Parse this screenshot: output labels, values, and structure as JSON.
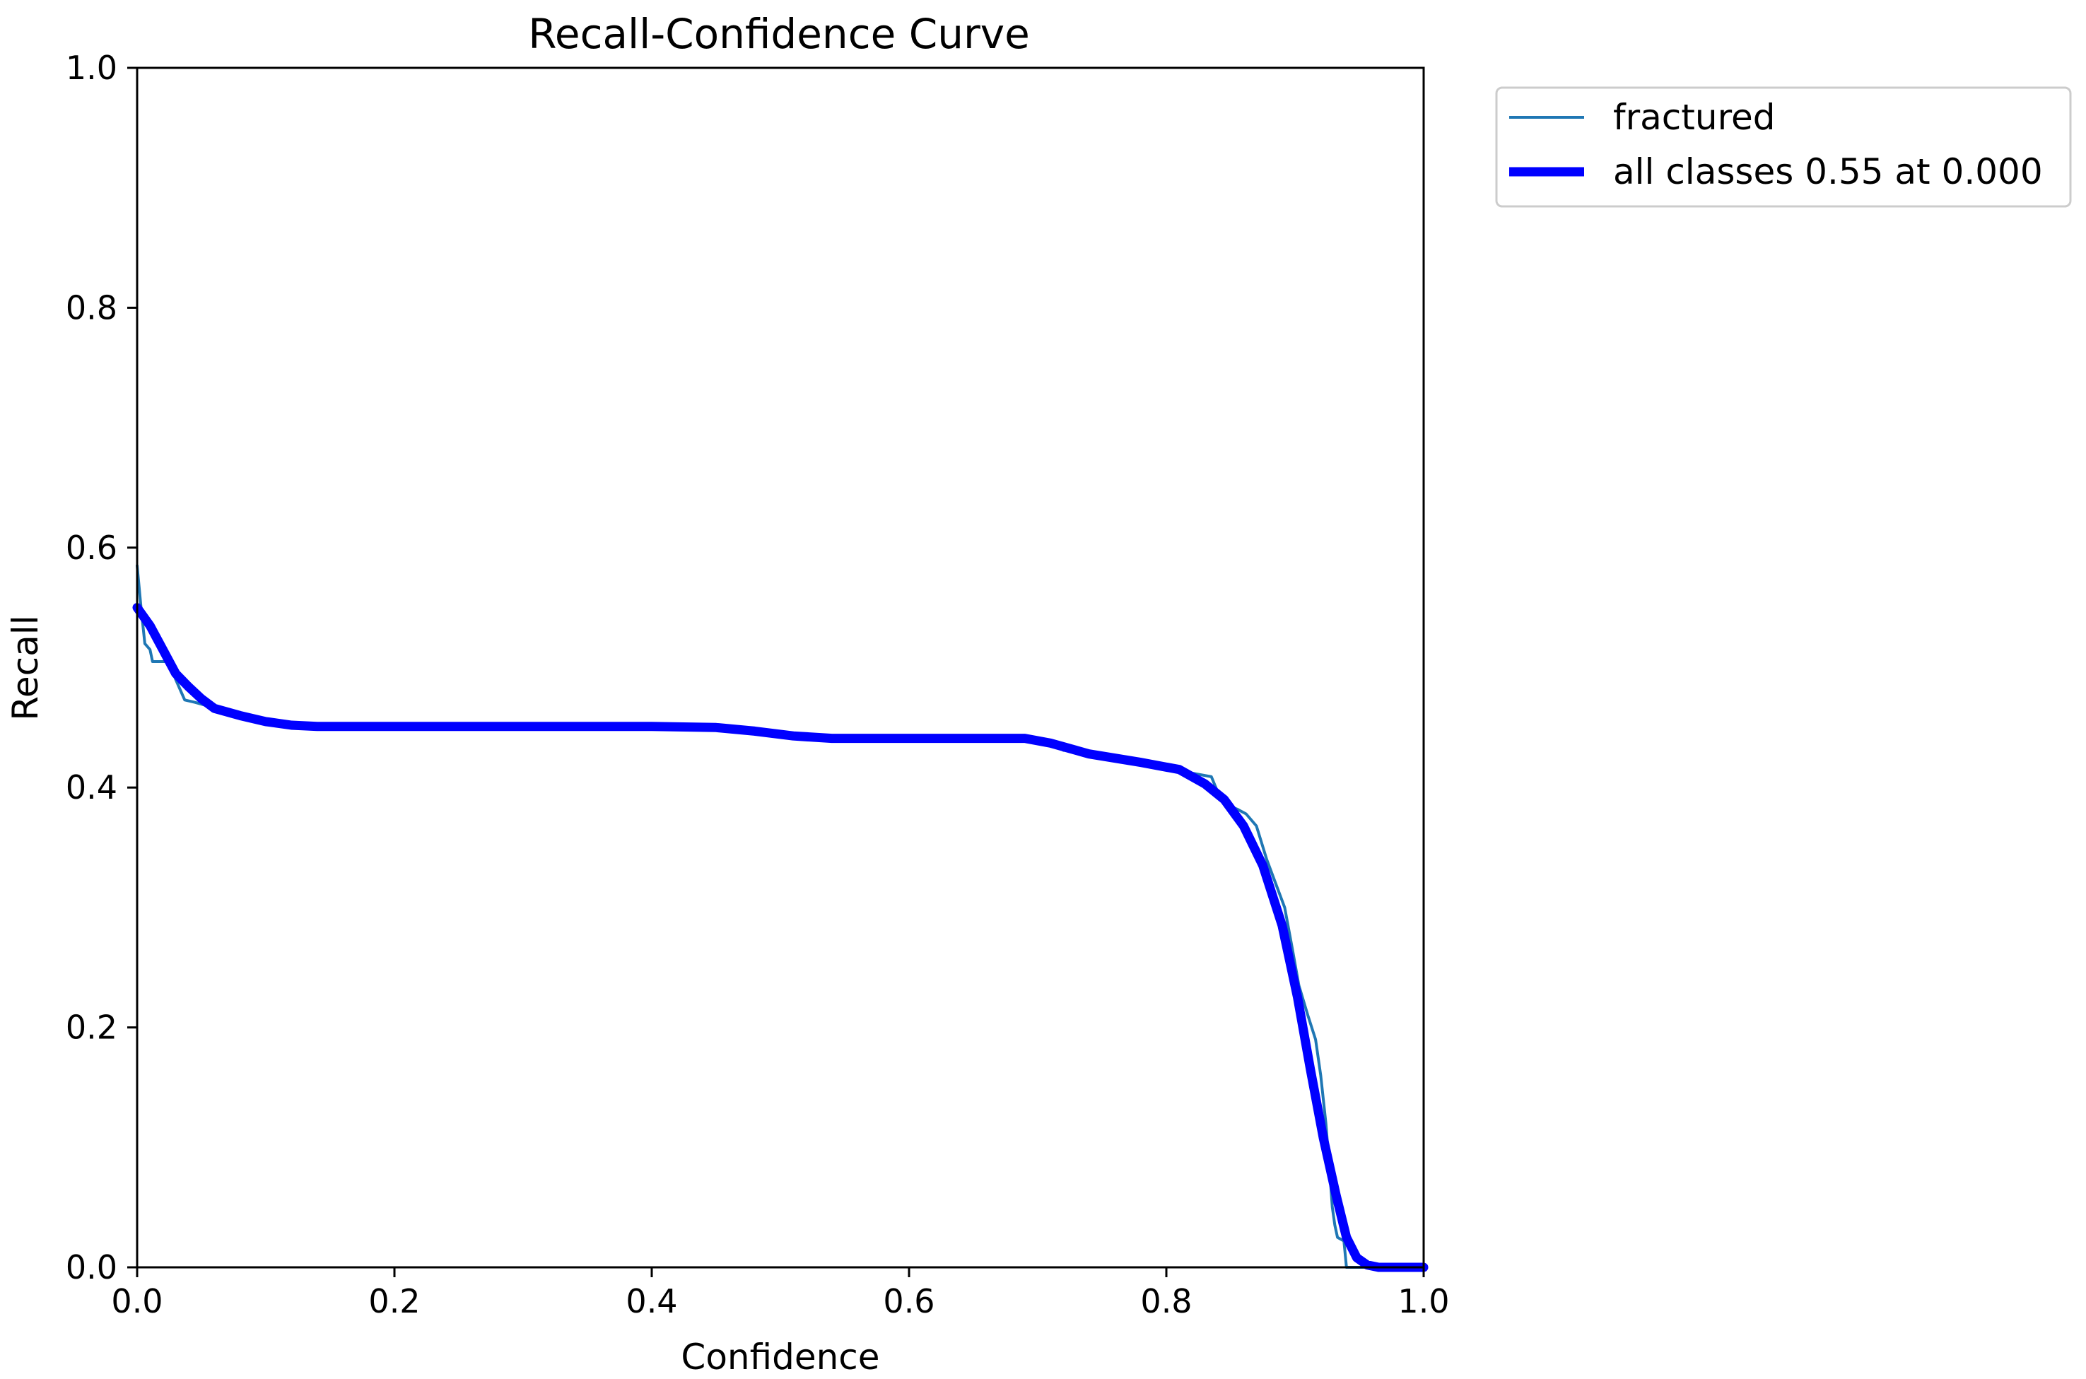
{
  "chart_data": {
    "type": "line",
    "title": "Recall-Confidence Curve",
    "xlabel": "Confidence",
    "ylabel": "Recall",
    "xlim": [
      0.0,
      1.0
    ],
    "ylim": [
      0.0,
      1.0
    ],
    "xticks": [
      "0.0",
      "0.2",
      "0.4",
      "0.6",
      "0.8",
      "1.0"
    ],
    "yticks": [
      "0.0",
      "0.2",
      "0.4",
      "0.6",
      "0.8",
      "1.0"
    ],
    "grid": false,
    "legend_position": "outside-top-right",
    "series": [
      {
        "name": "fractured",
        "color": "#1f77b4",
        "points": [
          [
            0.0,
            0.585
          ],
          [
            0.003,
            0.55
          ],
          [
            0.006,
            0.52
          ],
          [
            0.01,
            0.515
          ],
          [
            0.012,
            0.505
          ],
          [
            0.02,
            0.505
          ],
          [
            0.025,
            0.505
          ],
          [
            0.03,
            0.49
          ],
          [
            0.037,
            0.473
          ],
          [
            0.045,
            0.471
          ],
          [
            0.055,
            0.468
          ],
          [
            0.065,
            0.464
          ],
          [
            0.08,
            0.459
          ],
          [
            0.1,
            0.455
          ],
          [
            0.13,
            0.451
          ],
          [
            0.2,
            0.451
          ],
          [
            0.3,
            0.451
          ],
          [
            0.4,
            0.451
          ],
          [
            0.45,
            0.451
          ],
          [
            0.48,
            0.448
          ],
          [
            0.52,
            0.442
          ],
          [
            0.55,
            0.44
          ],
          [
            0.6,
            0.44
          ],
          [
            0.65,
            0.44
          ],
          [
            0.69,
            0.44
          ],
          [
            0.705,
            0.437
          ],
          [
            0.712,
            0.437
          ],
          [
            0.72,
            0.431
          ],
          [
            0.73,
            0.431
          ],
          [
            0.74,
            0.428
          ],
          [
            0.76,
            0.425
          ],
          [
            0.8,
            0.418
          ],
          [
            0.815,
            0.414
          ],
          [
            0.82,
            0.412
          ],
          [
            0.835,
            0.409
          ],
          [
            0.84,
            0.396
          ],
          [
            0.845,
            0.386
          ],
          [
            0.855,
            0.382
          ],
          [
            0.862,
            0.378
          ],
          [
            0.87,
            0.368
          ],
          [
            0.878,
            0.34
          ],
          [
            0.885,
            0.32
          ],
          [
            0.892,
            0.3
          ],
          [
            0.898,
            0.265
          ],
          [
            0.903,
            0.235
          ],
          [
            0.91,
            0.21
          ],
          [
            0.916,
            0.19
          ],
          [
            0.92,
            0.16
          ],
          [
            0.924,
            0.12
          ],
          [
            0.927,
            0.08
          ],
          [
            0.929,
            0.05
          ],
          [
            0.931,
            0.035
          ],
          [
            0.933,
            0.025
          ],
          [
            0.938,
            0.022
          ],
          [
            0.94,
            0.0
          ],
          [
            0.97,
            0.0
          ],
          [
            1.0,
            0.0
          ]
        ]
      },
      {
        "name": "all classes 0.55 at 0.000",
        "color": "#0000ff",
        "points": [
          [
            0.0,
            0.55
          ],
          [
            0.01,
            0.535
          ],
          [
            0.02,
            0.515
          ],
          [
            0.03,
            0.495
          ],
          [
            0.04,
            0.484
          ],
          [
            0.05,
            0.474
          ],
          [
            0.06,
            0.466
          ],
          [
            0.08,
            0.46
          ],
          [
            0.1,
            0.455
          ],
          [
            0.12,
            0.452
          ],
          [
            0.14,
            0.451
          ],
          [
            0.2,
            0.451
          ],
          [
            0.3,
            0.451
          ],
          [
            0.4,
            0.451
          ],
          [
            0.45,
            0.45
          ],
          [
            0.48,
            0.447
          ],
          [
            0.51,
            0.443
          ],
          [
            0.54,
            0.441
          ],
          [
            0.6,
            0.441
          ],
          [
            0.65,
            0.441
          ],
          [
            0.69,
            0.441
          ],
          [
            0.71,
            0.437
          ],
          [
            0.74,
            0.428
          ],
          [
            0.78,
            0.421
          ],
          [
            0.81,
            0.415
          ],
          [
            0.83,
            0.403
          ],
          [
            0.845,
            0.39
          ],
          [
            0.86,
            0.368
          ],
          [
            0.875,
            0.335
          ],
          [
            0.89,
            0.285
          ],
          [
            0.902,
            0.225
          ],
          [
            0.912,
            0.165
          ],
          [
            0.922,
            0.108
          ],
          [
            0.932,
            0.06
          ],
          [
            0.94,
            0.025
          ],
          [
            0.948,
            0.008
          ],
          [
            0.956,
            0.002
          ],
          [
            0.965,
            0.0
          ],
          [
            1.0,
            0.0
          ]
        ]
      }
    ]
  }
}
